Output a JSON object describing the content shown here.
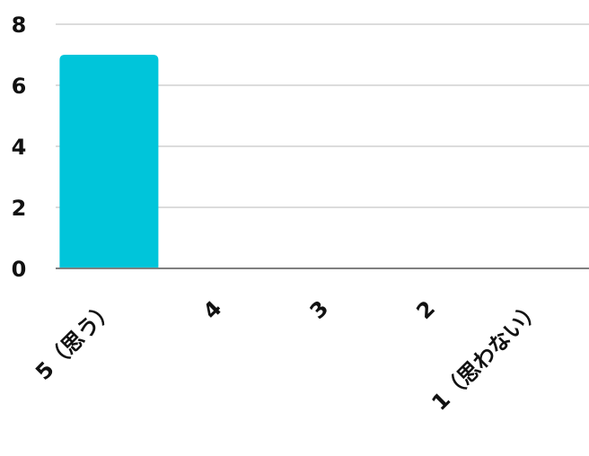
{
  "chart_data": {
    "type": "bar",
    "categories": [
      "5（思う）",
      "4",
      "3",
      "2",
      "1（思わない）"
    ],
    "values": [
      7,
      0,
      0,
      0,
      0
    ],
    "ylim": [
      0,
      8
    ],
    "yticks": [
      0,
      2,
      4,
      6,
      8
    ],
    "title": "",
    "xlabel": "",
    "ylabel": "",
    "grid": true,
    "bar_color": "#00C5DA",
    "grid_color": "#C8C8C8",
    "axis_color": "#808080"
  }
}
